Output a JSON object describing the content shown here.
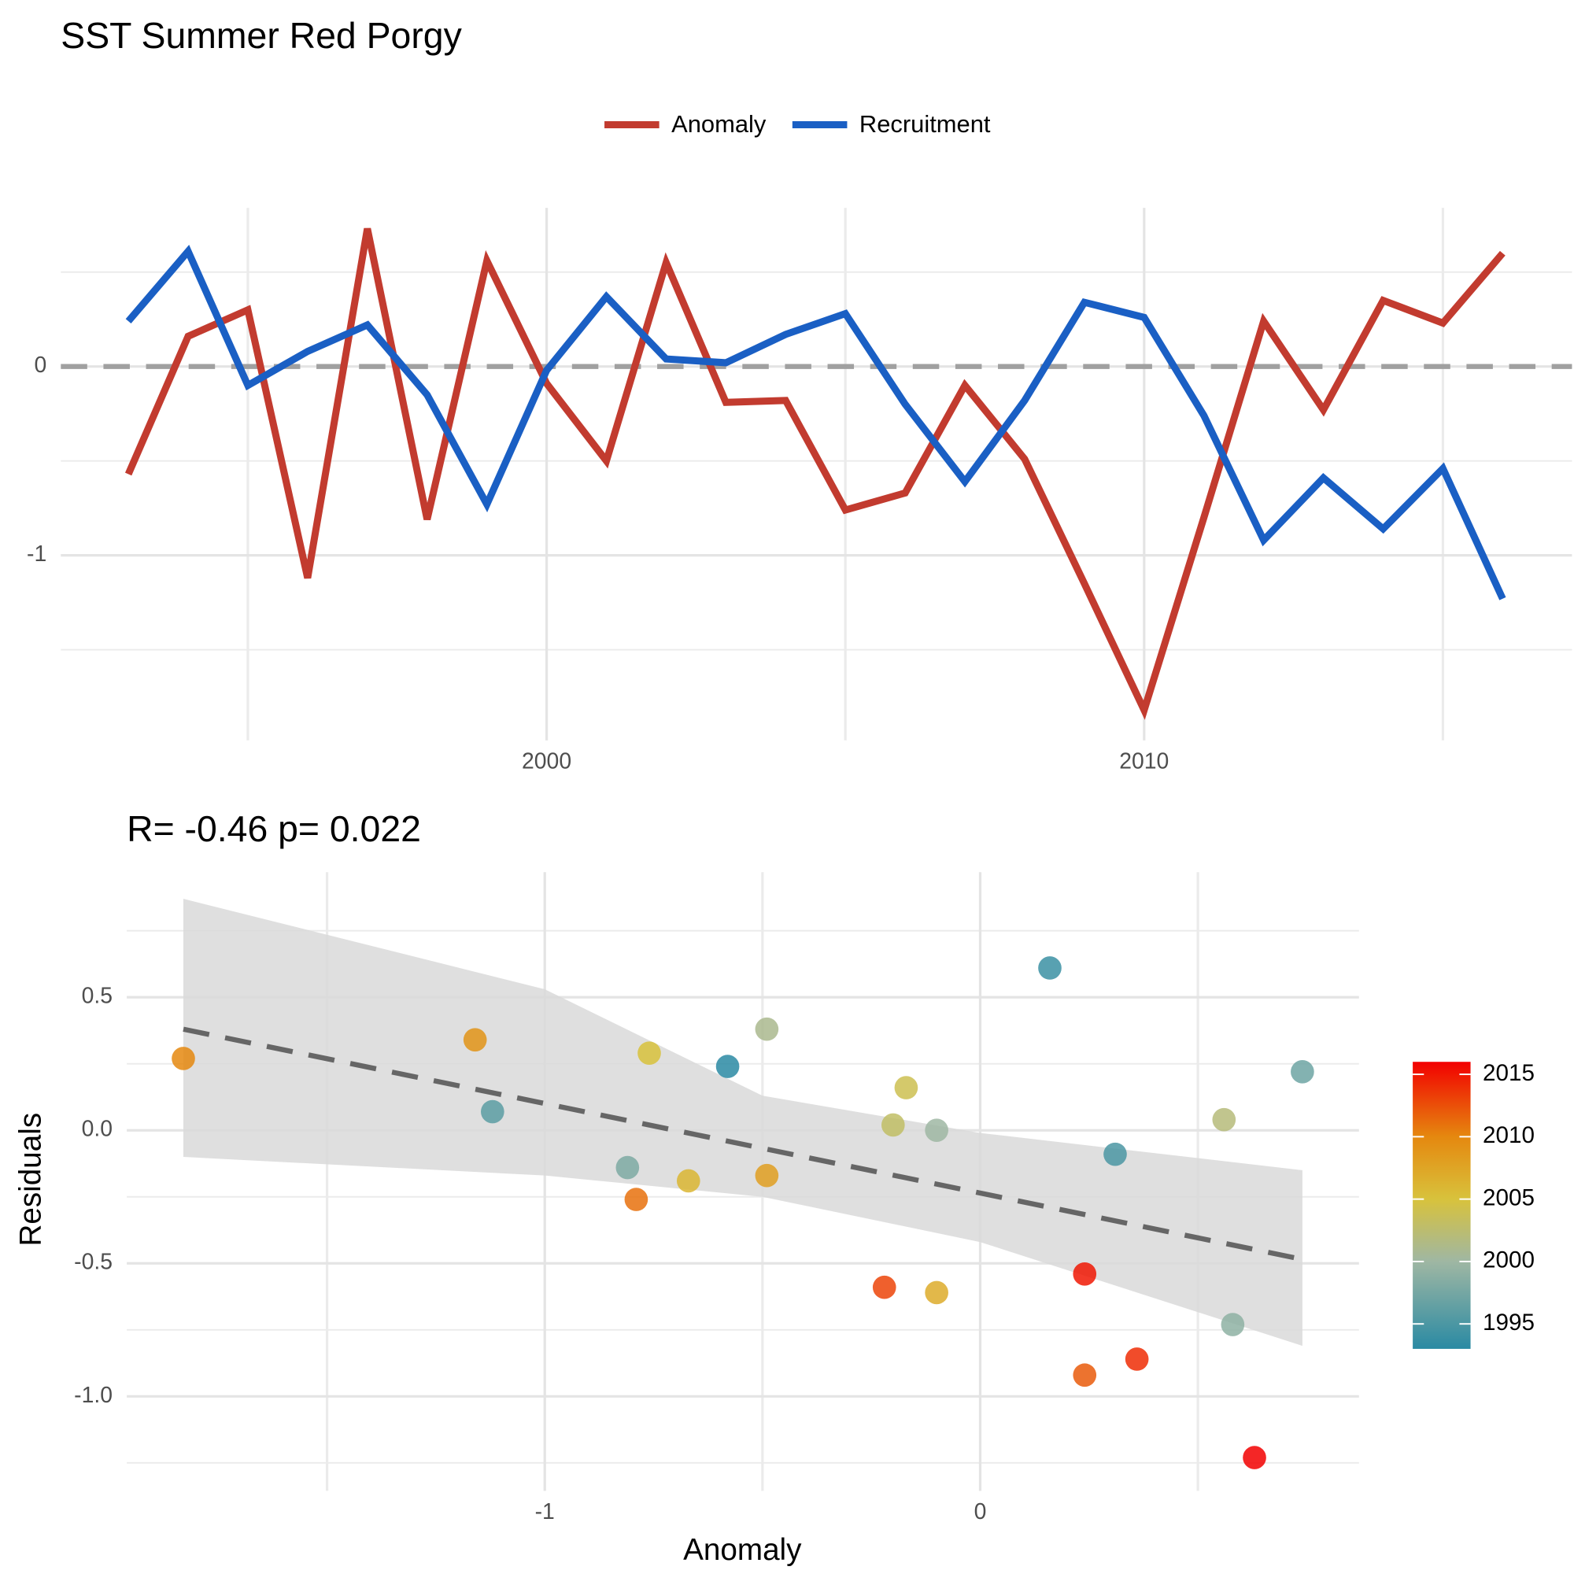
{
  "chart_data": [
    {
      "type": "line",
      "title": "SST Summer  Red Porgy",
      "x": [
        1993,
        1994,
        1995,
        1996,
        1997,
        1998,
        1999,
        2000,
        2001,
        2002,
        2003,
        2004,
        2005,
        2006,
        2007,
        2008,
        2009,
        2010,
        2011,
        2012,
        2013,
        2014,
        2015,
        2016
      ],
      "series": [
        {
          "name": "Anomaly",
          "color": "#c23b2f",
          "values": [
            -0.57,
            0.16,
            0.3,
            -1.12,
            0.73,
            -0.81,
            0.56,
            -0.09,
            -0.5,
            0.55,
            -0.19,
            -0.18,
            -0.76,
            -0.67,
            -0.1,
            -0.49,
            -1.15,
            -1.82,
            -0.8,
            0.24,
            -0.23,
            0.35,
            0.23,
            0.6
          ]
        },
        {
          "name": "Recruitment",
          "color": "#1a5fc4",
          "values": [
            0.24,
            0.61,
            -0.1,
            0.08,
            0.22,
            -0.15,
            -0.73,
            -0.02,
            0.37,
            0.04,
            0.02,
            0.17,
            0.28,
            -0.2,
            -0.61,
            -0.18,
            0.34,
            0.26,
            -0.26,
            -0.92,
            -0.59,
            -0.86,
            -0.54,
            -1.23
          ]
        }
      ],
      "xlim": [
        1991.87,
        2017.16
      ],
      "xticks": [
        2000,
        2010
      ],
      "xminor": [
        1995,
        2005,
        2015
      ],
      "ylim": [
        -1.98,
        0.84
      ],
      "yticks": [
        -1,
        0
      ],
      "yminor": [
        -1.5,
        -0.5,
        0.5
      ],
      "reference_line": {
        "y": 0,
        "color": "#a0a0a0"
      },
      "grid": true,
      "legend": "top"
    },
    {
      "type": "scatter",
      "title": "R= -0.46  p= 0.022",
      "xlabel": "Anomaly",
      "ylabel": "Residuals",
      "x": [
        -1.83,
        -1.16,
        -1.12,
        -0.81,
        -0.79,
        -0.76,
        -0.67,
        -0.58,
        -0.49,
        -0.49,
        -0.22,
        -0.17,
        -0.2,
        -0.1,
        -0.1,
        0.16,
        0.24,
        0.24,
        0.31,
        0.36,
        0.56,
        0.58,
        0.63,
        0.74
      ],
      "values": [
        0.27,
        0.34,
        0.07,
        -0.14,
        -0.26,
        0.29,
        -0.19,
        0.24,
        0.38,
        -0.17,
        -0.59,
        0.16,
        0.02,
        0.0,
        -0.61,
        0.61,
        -0.54,
        -0.92,
        -0.09,
        -0.86,
        0.04,
        -0.73,
        -1.23,
        0.22
      ],
      "years": [
        2010,
        2009,
        1996,
        1998,
        2011,
        2005,
        2006,
        1993,
        2001,
        2008,
        2013,
        2004,
        2003,
        2000,
        2007,
        1994,
        2015,
        2012,
        1995,
        2014,
        2002,
        1999,
        2016,
        1997
      ],
      "fit": {
        "x": [
          -1.83,
          0.74
        ],
        "y": [
          0.38,
          -0.485
        ],
        "color": "#666666"
      },
      "band": {
        "x": [
          -1.83,
          -1.0,
          -0.5,
          0,
          0.74
        ],
        "upper": [
          0.87,
          0.53,
          0.13,
          -0.01,
          -0.15
        ],
        "lower": [
          -0.1,
          -0.17,
          -0.25,
          -0.42,
          -0.81
        ],
        "color": "#d9d9d9"
      },
      "xlim": [
        -1.96,
        0.87
      ],
      "xticks": [
        -1,
        0
      ],
      "xminor": [
        -1.5,
        -0.5,
        0.5
      ],
      "ylim": [
        -1.355,
        0.97
      ],
      "yticks": [
        {
          "value": -1,
          "label": "-1.0"
        },
        -0.5,
        {
          "value": 0,
          "label": "0.0"
        },
        0.5
      ],
      "yminor": [
        -1.25,
        -0.75,
        -0.25,
        0.25,
        0.75
      ],
      "grid": true,
      "colorbar": {
        "lim": [
          1993,
          2016
        ],
        "ticks": [
          1995,
          2000,
          2005,
          2010,
          2015
        ],
        "stops": [
          {
            "year": 1993,
            "color": "#2a8aa3"
          },
          {
            "year": 2000,
            "color": "#9fb7a3"
          },
          {
            "year": 2005,
            "color": "#d8c23c"
          },
          {
            "year": 2010,
            "color": "#e5880f"
          },
          {
            "year": 2016,
            "color": "#f20000"
          }
        ]
      }
    }
  ]
}
